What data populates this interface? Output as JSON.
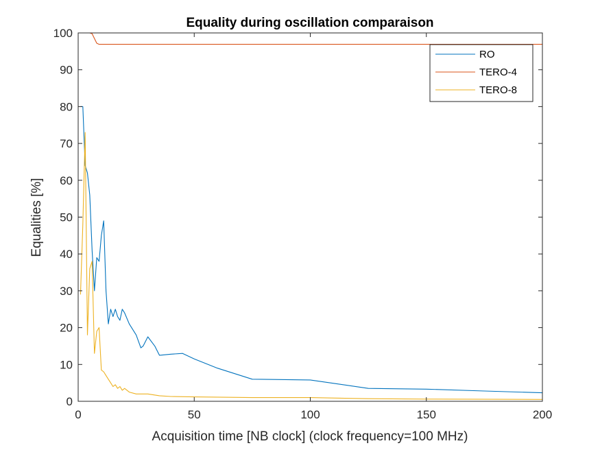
{
  "chart_data": {
    "type": "line",
    "title": "Equality during oscillation comparaison",
    "xlabel": "Acquisition time [NB clock] (clock frequency=100 MHz)",
    "ylabel": "Equalities [%]",
    "xlim": [
      0,
      200
    ],
    "ylim": [
      0,
      100
    ],
    "xticks": [
      0,
      50,
      100,
      150,
      200
    ],
    "yticks": [
      0,
      10,
      20,
      30,
      40,
      50,
      60,
      70,
      80,
      90,
      100
    ],
    "grid": false,
    "legend_position": "top-right",
    "series": [
      {
        "name": "RO",
        "color": "#0072BD",
        "x": [
          1,
          2,
          3,
          4,
          5,
          6,
          7,
          8,
          9,
          10,
          11,
          12,
          13,
          14,
          15,
          16,
          17,
          18,
          19,
          20,
          22,
          25,
          27,
          28,
          30,
          33,
          35,
          40,
          45,
          50,
          60,
          75,
          100,
          125,
          150,
          175,
          200
        ],
        "y": [
          80,
          80,
          64,
          62,
          56,
          41,
          30,
          39,
          38,
          45,
          49,
          30,
          21,
          25,
          23,
          25,
          23,
          22,
          25,
          24,
          21,
          18,
          14.5,
          15,
          17.5,
          15,
          12.5,
          12.8,
          13,
          11.5,
          9,
          6,
          5.8,
          3.5,
          3.3,
          2.8,
          2.3
        ]
      },
      {
        "name": "TERO-4",
        "color": "#D95319",
        "x": [
          1,
          3,
          5,
          6,
          7,
          8,
          9,
          10,
          20,
          50,
          100,
          150,
          200
        ],
        "y": [
          100,
          100,
          100,
          99.8,
          98.5,
          97.2,
          96.9,
          96.9,
          96.9,
          96.9,
          96.9,
          96.9,
          96.9
        ]
      },
      {
        "name": "TERO-8",
        "color": "#EDB120",
        "x": [
          1,
          2,
          3,
          4,
          5,
          6,
          7,
          8,
          9,
          10,
          11,
          12,
          13,
          14,
          15,
          16,
          17,
          18,
          19,
          20,
          22,
          25,
          30,
          35,
          40,
          50,
          75,
          100,
          125,
          150,
          200
        ],
        "y": [
          29,
          48,
          73,
          18,
          36,
          38,
          13,
          19,
          20,
          8.5,
          8,
          7,
          6,
          5,
          4,
          4.5,
          3.5,
          4,
          3,
          3.5,
          2.5,
          2,
          2,
          1.5,
          1.3,
          1.2,
          1,
          1,
          0.7,
          0.6,
          0.5
        ]
      }
    ]
  }
}
